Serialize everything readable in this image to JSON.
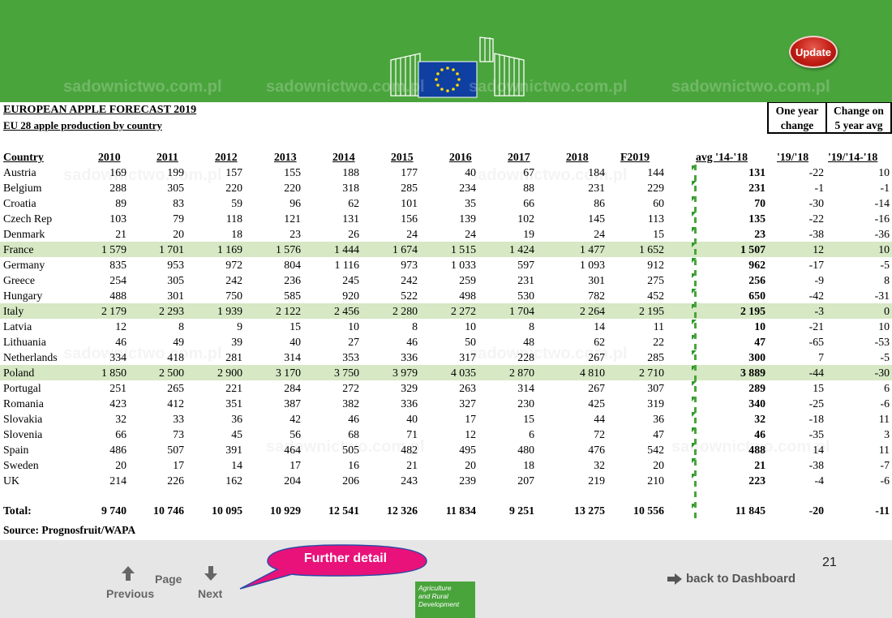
{
  "header": {
    "update_label": "Update"
  },
  "titles": {
    "main": "EUROPEAN APPLE FORECAST 2019",
    "sub": "EU 28 apple production by country",
    "box1": [
      "One year",
      "change"
    ],
    "box2": [
      "Change on",
      "5 year avg"
    ]
  },
  "table": {
    "columns": [
      "Country",
      "2010",
      "2011",
      "2012",
      "2013",
      "2014",
      "2015",
      "2016",
      "2017",
      "2018",
      "F2019",
      "avg '14-'18",
      "'19/'18",
      "'19/'14-'18"
    ],
    "rows": [
      {
        "country": "Austria",
        "values": [
          "169",
          "199",
          "157",
          "155",
          "188",
          "177",
          "40",
          "67",
          "184",
          "144"
        ],
        "avg": "131",
        "yoy": "-22",
        "vs5": "10",
        "highlight": false
      },
      {
        "country": "Belgium",
        "values": [
          "288",
          "305",
          "220",
          "220",
          "318",
          "285",
          "234",
          "88",
          "231",
          "229"
        ],
        "avg": "231",
        "yoy": "-1",
        "vs5": "-1",
        "highlight": false
      },
      {
        "country": "Croatia",
        "values": [
          "89",
          "83",
          "59",
          "96",
          "62",
          "101",
          "35",
          "66",
          "86",
          "60"
        ],
        "avg": "70",
        "yoy": "-30",
        "vs5": "-14",
        "highlight": false
      },
      {
        "country": "Czech Rep",
        "values": [
          "103",
          "79",
          "118",
          "121",
          "131",
          "156",
          "139",
          "102",
          "145",
          "113"
        ],
        "avg": "135",
        "yoy": "-22",
        "vs5": "-16",
        "highlight": false
      },
      {
        "country": "Denmark",
        "values": [
          "21",
          "20",
          "18",
          "23",
          "26",
          "24",
          "24",
          "19",
          "24",
          "15"
        ],
        "avg": "23",
        "yoy": "-38",
        "vs5": "-36",
        "highlight": false
      },
      {
        "country": "France",
        "values": [
          "1 579",
          "1 701",
          "1 169",
          "1 576",
          "1 444",
          "1 674",
          "1 515",
          "1 424",
          "1 477",
          "1 652"
        ],
        "avg": "1 507",
        "yoy": "12",
        "vs5": "10",
        "highlight": true
      },
      {
        "country": "Germany",
        "values": [
          "835",
          "953",
          "972",
          "804",
          "1 116",
          "973",
          "1 033",
          "597",
          "1 093",
          "912"
        ],
        "avg": "962",
        "yoy": "-17",
        "vs5": "-5",
        "highlight": false
      },
      {
        "country": "Greece",
        "values": [
          "254",
          "305",
          "242",
          "236",
          "245",
          "242",
          "259",
          "231",
          "301",
          "275"
        ],
        "avg": "256",
        "yoy": "-9",
        "vs5": "8",
        "highlight": false
      },
      {
        "country": "Hungary",
        "values": [
          "488",
          "301",
          "750",
          "585",
          "920",
          "522",
          "498",
          "530",
          "782",
          "452"
        ],
        "avg": "650",
        "yoy": "-42",
        "vs5": "-31",
        "highlight": false
      },
      {
        "country": "Italy",
        "values": [
          "2 179",
          "2 293",
          "1 939",
          "2 122",
          "2 456",
          "2 280",
          "2 272",
          "1 704",
          "2 264",
          "2 195"
        ],
        "avg": "2 195",
        "yoy": "-3",
        "vs5": "0",
        "highlight": true
      },
      {
        "country": "Latvia",
        "values": [
          "12",
          "8",
          "9",
          "15",
          "10",
          "8",
          "10",
          "8",
          "14",
          "11"
        ],
        "avg": "10",
        "yoy": "-21",
        "vs5": "10",
        "highlight": false
      },
      {
        "country": "Lithuania",
        "values": [
          "46",
          "49",
          "39",
          "40",
          "27",
          "46",
          "50",
          "48",
          "62",
          "22"
        ],
        "avg": "47",
        "yoy": "-65",
        "vs5": "-53",
        "highlight": false
      },
      {
        "country": "Netherlands",
        "values": [
          "334",
          "418",
          "281",
          "314",
          "353",
          "336",
          "317",
          "228",
          "267",
          "285"
        ],
        "avg": "300",
        "yoy": "7",
        "vs5": "-5",
        "highlight": false
      },
      {
        "country": "Poland",
        "values": [
          "1 850",
          "2 500",
          "2 900",
          "3 170",
          "3 750",
          "3 979",
          "4 035",
          "2 870",
          "4 810",
          "2 710"
        ],
        "avg": "3 889",
        "yoy": "-44",
        "vs5": "-30",
        "highlight": true
      },
      {
        "country": "Portugal",
        "values": [
          "251",
          "265",
          "221",
          "284",
          "272",
          "329",
          "263",
          "314",
          "267",
          "307"
        ],
        "avg": "289",
        "yoy": "15",
        "vs5": "6",
        "highlight": false
      },
      {
        "country": "Romania",
        "values": [
          "423",
          "412",
          "351",
          "387",
          "382",
          "336",
          "327",
          "230",
          "425",
          "319"
        ],
        "avg": "340",
        "yoy": "-25",
        "vs5": "-6",
        "highlight": false
      },
      {
        "country": "Slovakia",
        "values": [
          "32",
          "33",
          "36",
          "42",
          "46",
          "40",
          "17",
          "15",
          "44",
          "36"
        ],
        "avg": "32",
        "yoy": "-18",
        "vs5": "11",
        "highlight": false
      },
      {
        "country": "Slovenia",
        "values": [
          "66",
          "73",
          "45",
          "56",
          "68",
          "71",
          "12",
          "6",
          "72",
          "47"
        ],
        "avg": "46",
        "yoy": "-35",
        "vs5": "3",
        "highlight": false
      },
      {
        "country": "Spain",
        "values": [
          "486",
          "507",
          "391",
          "464",
          "505",
          "482",
          "495",
          "480",
          "476",
          "542"
        ],
        "avg": "488",
        "yoy": "14",
        "vs5": "11",
        "highlight": false
      },
      {
        "country": "Sweden",
        "values": [
          "20",
          "17",
          "14",
          "17",
          "16",
          "21",
          "20",
          "18",
          "32",
          "20"
        ],
        "avg": "21",
        "yoy": "-38",
        "vs5": "-7",
        "highlight": false
      },
      {
        "country": "UK",
        "values": [
          "214",
          "226",
          "162",
          "204",
          "206",
          "243",
          "239",
          "207",
          "219",
          "210"
        ],
        "avg": "223",
        "yoy": "-4",
        "vs5": "-6",
        "highlight": false
      }
    ],
    "total": {
      "country": "Total:",
      "values": [
        "9 740",
        "10 746",
        "10 095",
        "10 929",
        "12 541",
        "12 326",
        "11 834",
        "9 251",
        "13 275",
        "10 556"
      ],
      "avg": "11 845",
      "yoy": "-20",
      "vs5": "-11"
    }
  },
  "source": "Source: Prognosfruit/WAPA",
  "footer": {
    "previous_label": "Previous",
    "page_label": "Page",
    "next_label": "Next",
    "callout_label": "Further detail",
    "agri_label": [
      "Agriculture",
      "and Rural",
      "Development"
    ],
    "dashboard_label": "back to Dashboard",
    "page_number": "21"
  },
  "watermark": "sadownictwo.com.pl",
  "colors": {
    "header_green": "#4aa43c",
    "row_highlight": "#d6e8c4",
    "update_red": "#c21d14",
    "callout_pink": "#e8127a",
    "eu_blue": "#0f3fa0",
    "eu_star": "#ffdd00"
  }
}
